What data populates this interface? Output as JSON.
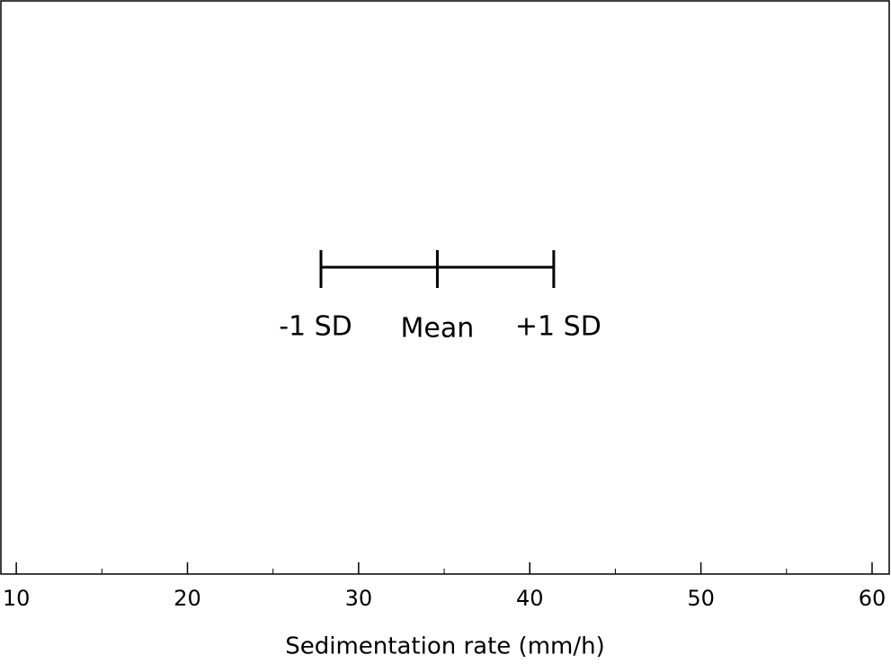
{
  "chart_data": {
    "type": "errorbar",
    "xlabel": "Sedimentation rate (mm/h)",
    "values": [
      34.6
    ],
    "errors": [
      6.8
    ],
    "annotations": [
      "-1 SD",
      "Mean",
      "+1 SD"
    ],
    "color": "#000000",
    "xlim": [
      9.1,
      61
    ],
    "xticks": [
      10,
      20,
      30,
      40,
      50,
      60
    ],
    "xminor_ticks": [
      15,
      25,
      35,
      45,
      55
    ]
  }
}
